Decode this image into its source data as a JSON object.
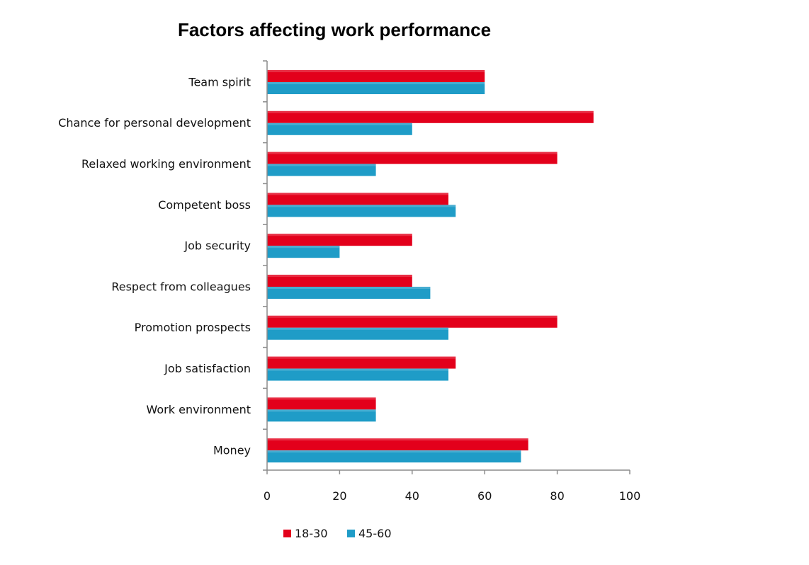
{
  "chart_data": {
    "type": "bar",
    "orientation": "horizontal",
    "title": "Factors affecting work performance",
    "categories": [
      "Team spirit",
      "Chance for personal development",
      "Relaxed working environment",
      "Competent boss",
      "Job security",
      "Respect from colleagues",
      "Promotion prospects",
      "Job satisfaction",
      "Work environment",
      "Money"
    ],
    "series": [
      {
        "name": "18-30",
        "color": "#e3001b",
        "values": [
          60,
          90,
          80,
          50,
          40,
          40,
          80,
          52,
          30,
          72
        ]
      },
      {
        "name": "45-60",
        "color": "#1f9cc7",
        "values": [
          60,
          40,
          30,
          52,
          20,
          45,
          50,
          50,
          30,
          70
        ]
      }
    ],
    "xlim": [
      0,
      100
    ],
    "xticks": [
      "0",
      "20",
      "40",
      "60",
      "80",
      "100"
    ],
    "grid": false,
    "legend_position": "bottom"
  }
}
